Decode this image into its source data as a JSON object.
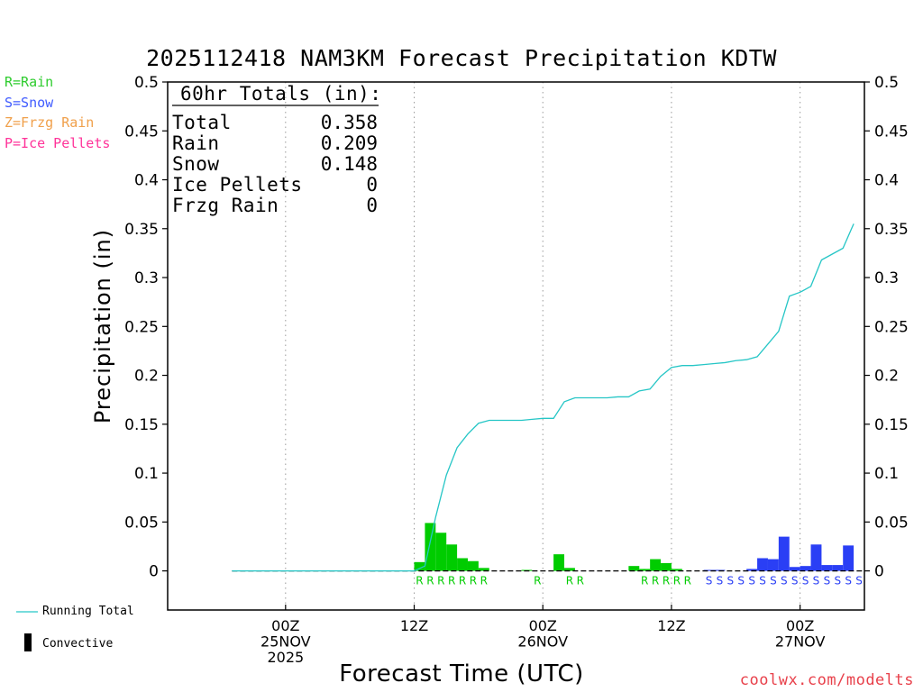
{
  "title": "2025112418 NAM3KM Forecast Precipitation KDTW",
  "legend_codes": [
    {
      "label": "R=Rain",
      "color": "#2ecc2e"
    },
    {
      "label": "S=Snow",
      "color": "#3f5bff"
    },
    {
      "label": "Z=Frzg Rain",
      "color": "#f0a04b"
    },
    {
      "label": "P=Ice Pellets",
      "color": "#ff3399"
    }
  ],
  "totals": {
    "header": "60hr Totals (in):",
    "rows": [
      {
        "label": "Total",
        "value": "0.358"
      },
      {
        "label": "Rain",
        "value": "0.209"
      },
      {
        "label": "Snow",
        "value": "0.148"
      },
      {
        "label": "Ice Pellets",
        "value": "0"
      },
      {
        "label": "Frzg Rain",
        "value": "0"
      }
    ]
  },
  "bottom_legend": {
    "running_total": "Running Total",
    "convective": "Convective"
  },
  "credit": "coolwx.com/modelts",
  "colors": {
    "rain": "#00cc00",
    "snow": "#2a3ff5",
    "running_total": "#26c6c6"
  },
  "chart_data": {
    "type": "bar",
    "title": "2025112418 NAM3KM Forecast Precipitation KDTW",
    "xlabel": "Forecast Time (UTC)",
    "ylabel": "Precipitation (in)",
    "ylim": [
      -0.04,
      0.5
    ],
    "x_unit": "forecast hour",
    "xlim": [
      -5,
      60
    ],
    "yticks": [
      "0",
      "0.05",
      "0.1",
      "0.15",
      "0.2",
      "0.25",
      "0.3",
      "0.35",
      "0.4",
      "0.45",
      "0.5"
    ],
    "ytick_values": [
      0,
      0.05,
      0.1,
      0.15,
      0.2,
      0.25,
      0.3,
      0.35,
      0.4,
      0.45,
      0.5
    ],
    "xticks": [
      {
        "hour": 6,
        "lines": [
          "00Z",
          "25NOV",
          "2025"
        ]
      },
      {
        "hour": 18,
        "lines": [
          "12Z"
        ]
      },
      {
        "hour": 30,
        "lines": [
          "00Z",
          "26NOV"
        ]
      },
      {
        "hour": 42,
        "lines": [
          "12Z"
        ]
      },
      {
        "hour": 54,
        "lines": [
          "00Z",
          "27NOV"
        ]
      }
    ],
    "series": [
      {
        "name": "Rain",
        "type": "R",
        "bars": [
          {
            "hour": 19,
            "value": 0.009
          },
          {
            "hour": 20,
            "value": 0.049
          },
          {
            "hour": 21,
            "value": 0.039
          },
          {
            "hour": 22,
            "value": 0.027
          },
          {
            "hour": 23,
            "value": 0.013
          },
          {
            "hour": 24,
            "value": 0.01
          },
          {
            "hour": 25,
            "value": 0.003
          },
          {
            "hour": 29,
            "value": 0.001
          },
          {
            "hour": 32,
            "value": 0.017
          },
          {
            "hour": 33,
            "value": 0.003
          },
          {
            "hour": 39,
            "value": 0.005
          },
          {
            "hour": 40,
            "value": 0.002
          },
          {
            "hour": 41,
            "value": 0.012
          },
          {
            "hour": 42,
            "value": 0.008
          },
          {
            "hour": 43,
            "value": 0.002
          }
        ]
      },
      {
        "name": "Snow",
        "type": "S",
        "bars": [
          {
            "hour": 46,
            "value": 0.001
          },
          {
            "hour": 47,
            "value": 0.001
          },
          {
            "hour": 50,
            "value": 0.002
          },
          {
            "hour": 51,
            "value": 0.013
          },
          {
            "hour": 52,
            "value": 0.012
          },
          {
            "hour": 53,
            "value": 0.035
          },
          {
            "hour": 54,
            "value": 0.004
          },
          {
            "hour": 55,
            "value": 0.005
          },
          {
            "hour": 56,
            "value": 0.027
          },
          {
            "hour": 57,
            "value": 0.006
          },
          {
            "hour": 58,
            "value": 0.006
          },
          {
            "hour": 59,
            "value": 0.026
          }
        ]
      }
    ],
    "type_labels": {
      "R": [
        19,
        20,
        21,
        22,
        23,
        24,
        25,
        30,
        33,
        34,
        40,
        41,
        42,
        43,
        44
      ],
      "S": [
        46,
        47,
        48,
        49,
        50,
        51,
        52,
        53,
        54,
        55,
        56,
        57,
        58,
        59,
        60
      ]
    },
    "running_total": {
      "name": "Running Total",
      "points": [
        [
          1,
          0
        ],
        [
          18,
          0
        ],
        [
          19,
          0.005
        ],
        [
          20,
          0.055
        ],
        [
          21,
          0.098
        ],
        [
          22,
          0.126
        ],
        [
          23,
          0.14
        ],
        [
          24,
          0.151
        ],
        [
          25,
          0.154
        ],
        [
          26,
          0.154
        ],
        [
          27,
          0.154
        ],
        [
          28,
          0.154
        ],
        [
          29,
          0.155
        ],
        [
          30,
          0.156
        ],
        [
          31,
          0.156
        ],
        [
          32,
          0.173
        ],
        [
          33,
          0.177
        ],
        [
          34,
          0.177
        ],
        [
          35,
          0.177
        ],
        [
          36,
          0.177
        ],
        [
          37,
          0.178
        ],
        [
          38,
          0.178
        ],
        [
          39,
          0.184
        ],
        [
          40,
          0.186
        ],
        [
          41,
          0.199
        ],
        [
          42,
          0.208
        ],
        [
          43,
          0.21
        ],
        [
          44,
          0.21
        ],
        [
          45,
          0.211
        ],
        [
          46,
          0.212
        ],
        [
          47,
          0.213
        ],
        [
          48,
          0.215
        ],
        [
          49,
          0.216
        ],
        [
          50,
          0.219
        ],
        [
          51,
          0.232
        ],
        [
          52,
          0.245
        ],
        [
          53,
          0.281
        ],
        [
          54,
          0.285
        ],
        [
          55,
          0.291
        ],
        [
          56,
          0.318
        ],
        [
          57,
          0.324
        ],
        [
          58,
          0.33
        ],
        [
          59,
          0.355
        ]
      ]
    }
  }
}
